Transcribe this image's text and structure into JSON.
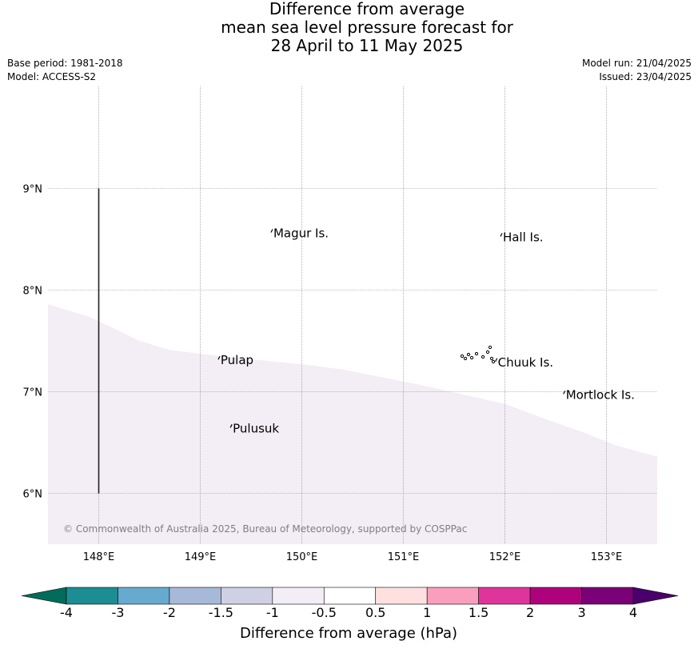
{
  "title": {
    "line1": "Difference from average",
    "line2": "mean sea level pressure forecast for",
    "line3": "28 April to 11 May 2025"
  },
  "meta": {
    "base_period": "Base period: 1981-2018",
    "model": "Model: ACCESS-S2",
    "model_run": "Model run: 21/04/2025",
    "issued": "Issued: 23/04/2025"
  },
  "map": {
    "lon_range": [
      147.5,
      153.5
    ],
    "lat_range": [
      5.5,
      10.0
    ],
    "lon_ticks": [
      "148°E",
      "149°E",
      "150°E",
      "151°E",
      "152°E",
      "153°E"
    ],
    "lat_ticks": [
      "6°N",
      "7°N",
      "8°N",
      "9°N"
    ],
    "shaded_category": "-1 to -0.5",
    "shaded_color": "#f3edf5",
    "places": [
      {
        "name": "Magur Is.",
        "lon": 149.72,
        "lat": 8.52
      },
      {
        "name": "Hall Is.",
        "lon": 151.98,
        "lat": 8.48
      },
      {
        "name": "Pulap",
        "lon": 149.2,
        "lat": 7.27
      },
      {
        "name": "Chuuk Is.",
        "lon": 151.93,
        "lat": 7.25
      },
      {
        "name": "Mortlock Is.",
        "lon": 152.6,
        "lat": 6.93
      },
      {
        "name": "Pulusuk",
        "lon": 149.32,
        "lat": 6.6
      }
    ],
    "copyright": "© Commonwealth of Australia 2025, Bureau of Meteorology, supported by COSPPac"
  },
  "colorbar": {
    "label": "Difference from average (hPa)",
    "ticks": [
      "-4",
      "-3",
      "-2",
      "-1.5",
      "-1",
      "-0.5",
      "0.5",
      "1",
      "1.5",
      "2",
      "3",
      "4"
    ],
    "colors": [
      "#1c8d92",
      "#66aacf",
      "#a7b9d8",
      "#d0d0e4",
      "#f3edf5",
      "#ffffff",
      "#fee0e0",
      "#f99fbd",
      "#df349a",
      "#ae027d",
      "#7a0177"
    ],
    "under_color": "#016c59",
    "over_color": "#49006a"
  }
}
